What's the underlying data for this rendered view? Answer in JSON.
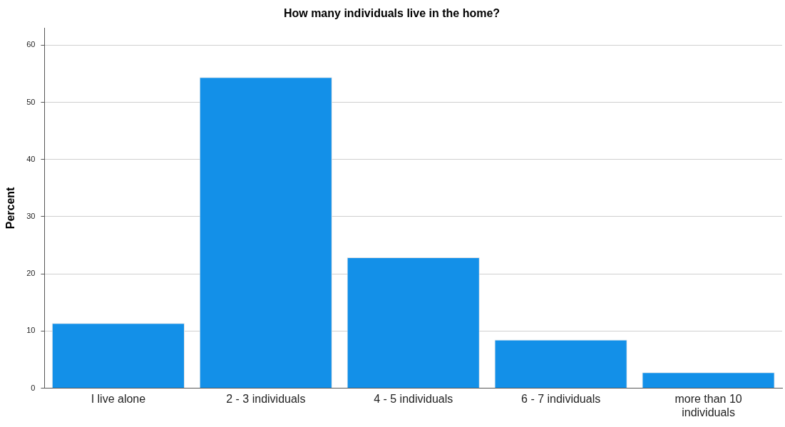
{
  "chart_data": {
    "type": "bar",
    "title": "How many individuals live in the home?",
    "ylabel": "Percent",
    "categories": [
      "I live alone",
      "2 - 3 individuals",
      "4 - 5 individuals",
      "6 - 7 individuals",
      "more than 10 individuals"
    ],
    "values": [
      11.4,
      54.4,
      22.9,
      8.5,
      2.8
    ],
    "color": "#1390e8",
    "ylim": [
      0,
      63
    ],
    "yticks": [
      0,
      10,
      20,
      30,
      40,
      50,
      60
    ],
    "grid": "y",
    "legend": false
  }
}
